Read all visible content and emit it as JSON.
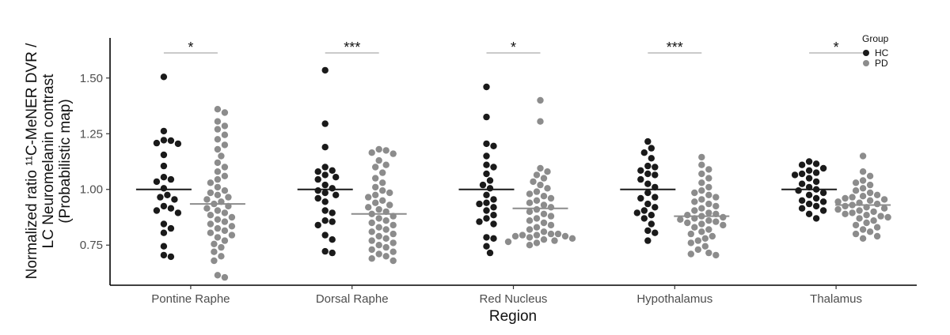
{
  "chart_data": {
    "type": "scatter",
    "subtype": "beeswarm",
    "xlabel": "Region",
    "ylabel_lines": [
      "Normalized ratio ¹¹C-MeNER DVR /",
      "LC Neuromelanin contrast",
      "(Probabilistic map)"
    ],
    "categories": [
      "Pontine Raphe",
      "Dorsal Raphe",
      "Red Nucleus",
      "Hypothalamus",
      "Thalamus"
    ],
    "ylim": [
      0.57,
      1.68
    ],
    "yticks": [
      {
        "value": 0.75,
        "label": "0.75"
      },
      {
        "value": 1.0,
        "label": "1.00"
      },
      {
        "value": 1.25,
        "label": "1.25"
      },
      {
        "value": 1.5,
        "label": "1.50"
      }
    ],
    "grid": false,
    "legend": {
      "title": "Group",
      "position": "top-right"
    },
    "series": [
      {
        "name": "HC",
        "color": "#1a1a1a",
        "means": [
          1.0,
          1.0,
          1.0,
          1.0,
          1.0
        ],
        "points": [
          [
            1.505,
            1.262,
            1.221,
            1.219,
            1.208,
            1.205,
            1.155,
            1.105,
            1.055,
            1.045,
            1.035,
            1.005,
            0.975,
            0.965,
            0.955,
            0.925,
            0.915,
            0.905,
            0.895,
            0.845,
            0.825,
            0.805,
            0.745,
            0.705,
            0.698
          ],
          [
            1.535,
            1.295,
            1.19,
            1.1,
            1.085,
            1.08,
            1.065,
            1.055,
            1.045,
            1.02,
            1.005,
            0.995,
            0.985,
            0.975,
            0.96,
            0.945,
            0.905,
            0.895,
            0.86,
            0.855,
            0.84,
            0.795,
            0.775,
            0.722,
            0.715
          ],
          [
            1.46,
            1.325,
            1.205,
            1.195,
            1.15,
            1.11,
            1.1,
            1.07,
            1.04,
            1.02,
            1.005,
            0.975,
            0.955,
            0.94,
            0.935,
            0.92,
            0.905,
            0.885,
            0.87,
            0.855,
            0.845,
            0.785,
            0.78,
            0.745,
            0.715
          ],
          [
            1.215,
            1.185,
            1.165,
            1.14,
            1.105,
            1.1,
            1.085,
            1.07,
            1.065,
            1.045,
            1.025,
            1.01,
            0.985,
            0.965,
            0.96,
            0.935,
            0.92,
            0.905,
            0.895,
            0.885,
            0.87,
            0.845,
            0.815,
            0.805,
            0.77
          ],
          [
            1.125,
            1.115,
            1.11,
            1.095,
            1.085,
            1.075,
            1.07,
            1.065,
            1.05,
            1.035,
            1.025,
            1.01,
            1.0,
            0.995,
            0.985,
            0.975,
            0.96,
            0.95,
            0.945,
            0.935,
            0.925,
            0.915,
            0.905,
            0.89,
            0.87
          ]
        ]
      },
      {
        "name": "PD",
        "color": "#8c8c8c",
        "means": [
          0.935,
          0.89,
          0.915,
          0.88,
          0.93
        ],
        "points": [
          [
            1.36,
            1.345,
            1.305,
            1.285,
            1.27,
            1.245,
            1.225,
            1.2,
            1.18,
            1.15,
            1.12,
            1.1,
            1.08,
            1.06,
            1.045,
            1.03,
            1.01,
            0.995,
            0.985,
            0.975,
            0.965,
            0.955,
            0.945,
            0.935,
            0.925,
            0.915,
            0.905,
            0.895,
            0.885,
            0.875,
            0.865,
            0.855,
            0.845,
            0.835,
            0.825,
            0.815,
            0.805,
            0.795,
            0.785,
            0.77,
            0.755,
            0.74,
            0.72,
            0.7,
            0.68,
            0.615,
            0.605
          ],
          [
            1.18,
            1.175,
            1.165,
            1.16,
            1.13,
            1.11,
            1.1,
            1.075,
            1.05,
            1.03,
            1.01,
            0.995,
            0.985,
            0.975,
            0.965,
            0.95,
            0.94,
            0.93,
            0.92,
            0.91,
            0.9,
            0.89,
            0.88,
            0.87,
            0.86,
            0.85,
            0.84,
            0.83,
            0.82,
            0.81,
            0.8,
            0.79,
            0.78,
            0.77,
            0.76,
            0.75,
            0.74,
            0.73,
            0.72,
            0.71,
            0.7,
            0.69,
            0.68
          ],
          [
            1.4,
            1.305,
            1.095,
            1.08,
            1.065,
            1.05,
            1.035,
            1.02,
            1.005,
            0.99,
            0.98,
            0.97,
            0.96,
            0.95,
            0.94,
            0.93,
            0.92,
            0.91,
            0.9,
            0.89,
            0.88,
            0.87,
            0.86,
            0.85,
            0.84,
            0.83,
            0.82,
            0.81,
            0.8,
            0.8,
            0.795,
            0.795,
            0.79,
            0.79,
            0.785,
            0.78,
            0.775,
            0.77,
            0.765,
            0.76,
            0.75
          ],
          [
            1.145,
            1.11,
            1.09,
            1.07,
            1.05,
            1.03,
            1.01,
            0.995,
            0.985,
            0.975,
            0.965,
            0.955,
            0.945,
            0.935,
            0.925,
            0.915,
            0.905,
            0.895,
            0.89,
            0.885,
            0.88,
            0.875,
            0.87,
            0.865,
            0.86,
            0.855,
            0.85,
            0.845,
            0.84,
            0.83,
            0.82,
            0.81,
            0.8,
            0.79,
            0.78,
            0.77,
            0.76,
            0.745,
            0.73,
            0.715,
            0.71,
            0.705
          ],
          [
            1.15,
            1.08,
            1.06,
            1.04,
            1.03,
            1.02,
            1.005,
            0.995,
            0.985,
            0.975,
            0.97,
            0.965,
            0.96,
            0.955,
            0.95,
            0.945,
            0.94,
            0.935,
            0.93,
            0.925,
            0.92,
            0.915,
            0.91,
            0.905,
            0.9,
            0.895,
            0.89,
            0.885,
            0.88,
            0.875,
            0.87,
            0.86,
            0.85,
            0.84,
            0.83,
            0.82,
            0.81,
            0.8,
            0.79,
            0.78
          ]
        ]
      }
    ],
    "significance": [
      {
        "category": "Pontine Raphe",
        "label": "*"
      },
      {
        "category": "Dorsal Raphe",
        "label": "***"
      },
      {
        "category": "Red Nucleus",
        "label": "*"
      },
      {
        "category": "Hypothalamus",
        "label": "***"
      },
      {
        "category": "Thalamus",
        "label": "*"
      }
    ]
  }
}
